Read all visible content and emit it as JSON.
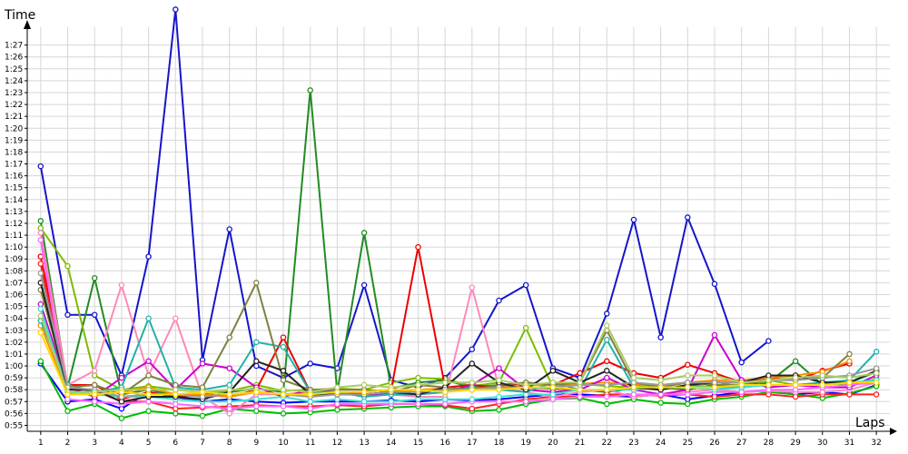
{
  "chart_data": {
    "type": "line",
    "title": "",
    "xlabel": "Laps",
    "ylabel": "Time",
    "grid": true,
    "legend": "none",
    "x": [
      1,
      2,
      3,
      4,
      5,
      6,
      7,
      8,
      9,
      10,
      11,
      12,
      13,
      14,
      15,
      16,
      17,
      18,
      19,
      20,
      21,
      22,
      23,
      24,
      25,
      26,
      27,
      28,
      29,
      30,
      31,
      32
    ],
    "xlim": [
      0.5,
      32.5
    ],
    "ylim": [
      54.5,
      88.5
    ],
    "y_unit": "seconds",
    "y_ticks": [
      55,
      56,
      57,
      58,
      59,
      60,
      61,
      62,
      63,
      64,
      65,
      66,
      67,
      68,
      69,
      70,
      71,
      72,
      73,
      74,
      75,
      76,
      77,
      78,
      79,
      80,
      81,
      82,
      83,
      84,
      85,
      86,
      87
    ],
    "y_tick_labels": [
      "0:55",
      "0:56",
      "0:57",
      "0:58",
      "0:59",
      "1:00",
      "1:01",
      "1:02",
      "1:03",
      "1:04",
      "1:05",
      "1:06",
      "1:07",
      "1:08",
      "1:09",
      "1:10",
      "1:11",
      "1:12",
      "1:13",
      "1:14",
      "1:15",
      "1:16",
      "1:17",
      "1:18",
      "1:19",
      "1:20",
      "1:21",
      "1:22",
      "1:23",
      "1:24",
      "1:25",
      "1:26",
      "1:27"
    ],
    "series": [
      {
        "color": "#1515cc",
        "values": [
          76.8,
          64.3,
          64.3,
          59.2,
          69.2,
          90.0,
          60.5,
          71.5,
          60.0,
          59.0,
          60.2,
          59.8,
          66.8,
          58.8,
          58.2,
          59.0,
          61.4,
          65.5,
          66.8,
          59.8,
          59.0,
          64.4,
          72.3,
          62.4,
          72.5,
          66.9,
          60.3,
          62.1,
          null,
          null,
          null,
          null
        ]
      },
      {
        "color": "#0000ff",
        "values": [
          60.2,
          57.0,
          57.2,
          56.4,
          57.8,
          57.4,
          57.0,
          57.2,
          57.0,
          56.9,
          57.0,
          57.0,
          57.0,
          57.1,
          57.0,
          57.2,
          57.1,
          57.2,
          57.4,
          57.6,
          57.6,
          57.5,
          57.4,
          57.6,
          57.2,
          57.5,
          57.8,
          57.9,
          57.6,
          57.8,
          57.6,
          58.4
        ]
      },
      {
        "color": "#00bb00",
        "values": [
          60.4,
          56.2,
          56.8,
          55.6,
          56.2,
          56.0,
          55.8,
          56.4,
          56.2,
          56.0,
          56.1,
          56.3,
          56.4,
          56.5,
          56.6,
          56.6,
          56.2,
          56.3,
          56.8,
          57.2,
          57.3,
          56.8,
          57.2,
          56.9,
          56.8,
          57.2,
          57.4,
          57.8,
          57.6,
          57.3,
          57.7,
          58.3
        ]
      },
      {
        "color": "#228b22",
        "values": [
          72.2,
          58.2,
          67.4,
          57.6,
          58.0,
          57.5,
          57.6,
          57.8,
          58.1,
          57.8,
          83.2,
          57.8,
          71.2,
          58.1,
          58.6,
          58.8,
          58.2,
          58.4,
          58.2,
          58.1,
          58.0,
          57.8,
          58.1,
          58.2,
          58.0,
          58.4,
          58.2,
          58.6,
          60.4,
          58.4,
          58.6,
          59.5
        ]
      },
      {
        "color": "#7bbd00",
        "values": [
          71.6,
          68.4,
          59.2,
          58.0,
          58.3,
          58.0,
          57.8,
          57.9,
          58.4,
          57.9,
          58.0,
          58.1,
          58.0,
          58.6,
          59.0,
          58.9,
          58.3,
          58.6,
          63.2,
          58.2,
          58.5,
          58.3,
          58.2,
          58.4,
          58.6,
          58.7,
          58.2,
          58.8,
          58.4,
          58.6,
          58.4,
          58.9
        ]
      },
      {
        "color": "#ee0000",
        "values": [
          69.2,
          58.4,
          58.4,
          57.2,
          57.8,
          57.4,
          57.6,
          57.4,
          58.0,
          62.4,
          57.8,
          57.6,
          57.8,
          58.0,
          70.0,
          58.2,
          58.4,
          58.2,
          58.6,
          58.4,
          59.4,
          60.4,
          59.4,
          59.0,
          60.1,
          59.4,
          58.6,
          59.0,
          58.8,
          59.6,
          60.2,
          null
        ]
      },
      {
        "color": "#ff2222",
        "values": [
          68.6,
          57.6,
          57.9,
          57.0,
          57.0,
          56.4,
          56.5,
          56.6,
          56.7,
          56.6,
          56.6,
          56.7,
          56.6,
          56.8,
          56.8,
          56.7,
          56.4,
          56.8,
          57.2,
          57.4,
          57.4,
          57.6,
          57.6,
          57.5,
          57.6,
          57.4,
          57.6,
          57.6,
          57.4,
          57.6,
          57.6,
          57.6
        ]
      },
      {
        "color": "#ff8c00",
        "values": [
          63.4,
          57.8,
          57.6,
          57.8,
          58.2,
          57.6,
          57.6,
          57.4,
          57.8,
          57.6,
          57.8,
          57.6,
          57.6,
          57.8,
          58.0,
          58.1,
          58.0,
          58.2,
          58.4,
          58.4,
          58.5,
          58.6,
          58.4,
          58.4,
          58.6,
          58.8,
          58.8,
          59.0,
          59.2,
          59.5,
          60.4,
          null
        ]
      },
      {
        "color": "#ff88bb",
        "values": [
          71.2,
          58.4,
          59.6,
          66.8,
          59.2,
          64.0,
          57.4,
          56.0,
          57.6,
          57.6,
          57.6,
          57.8,
          57.6,
          57.6,
          57.4,
          57.4,
          66.6,
          58.2,
          57.8,
          57.4,
          57.8,
          58.0,
          57.4,
          57.6,
          57.8,
          58.0,
          57.8,
          57.9,
          57.8,
          57.8,
          58.0,
          58.6
        ]
      },
      {
        "color": "#cc00cc",
        "values": [
          65.2,
          58.2,
          57.4,
          59.0,
          60.4,
          58.0,
          60.2,
          59.8,
          58.2,
          57.4,
          58.0,
          57.8,
          57.6,
          57.6,
          57.6,
          57.8,
          58.4,
          59.8,
          58.0,
          57.8,
          58.0,
          59.0,
          58.0,
          57.6,
          58.0,
          62.6,
          58.8,
          58.2,
          58.4,
          58.2,
          58.2,
          59.2
        ]
      },
      {
        "color": "#ff66ff",
        "values": [
          70.6,
          57.2,
          57.0,
          56.8,
          57.0,
          56.8,
          56.6,
          56.4,
          56.6,
          56.6,
          56.4,
          56.8,
          56.8,
          56.8,
          56.8,
          56.8,
          57.0,
          57.0,
          57.0,
          57.2,
          57.4,
          57.4,
          57.6,
          57.6,
          57.6,
          57.8,
          57.8,
          58.0,
          58.0,
          58.2,
          58.4,
          58.6
        ]
      },
      {
        "color": "#20b2aa",
        "values": [
          63.8,
          58.4,
          57.8,
          58.2,
          64.0,
          58.2,
          58.0,
          58.4,
          62.0,
          61.6,
          57.8,
          57.8,
          57.4,
          57.6,
          57.6,
          57.8,
          58.2,
          58.0,
          57.8,
          58.6,
          58.0,
          62.2,
          58.2,
          58.0,
          58.4,
          58.2,
          58.2,
          58.4,
          58.4,
          58.6,
          58.8,
          61.2
        ]
      },
      {
        "color": "#40e0d0",
        "values": [
          64.8,
          57.8,
          57.6,
          57.4,
          57.4,
          57.2,
          57.0,
          57.0,
          57.2,
          57.4,
          57.0,
          57.2,
          57.0,
          57.0,
          57.2,
          57.2,
          57.2,
          57.4,
          57.6,
          57.6,
          58.0,
          58.0,
          58.0,
          58.2,
          58.2,
          58.0,
          58.2,
          58.4,
          58.4,
          58.4,
          58.6,
          58.8
        ]
      },
      {
        "color": "#808040",
        "values": [
          66.4,
          58.2,
          58.4,
          57.6,
          59.2,
          58.4,
          58.2,
          62.4,
          67.0,
          58.8,
          58.0,
          58.0,
          58.0,
          57.8,
          58.4,
          58.2,
          58.0,
          58.4,
          58.6,
          58.4,
          58.6,
          63.0,
          58.6,
          58.2,
          58.6,
          58.4,
          58.4,
          58.8,
          59.0,
          59.0,
          61.0,
          null
        ]
      },
      {
        "color": "#222222",
        "values": [
          67.0,
          58.0,
          58.0,
          57.0,
          57.4,
          57.4,
          57.2,
          57.8,
          60.4,
          59.6,
          57.6,
          57.6,
          57.6,
          57.8,
          57.6,
          58.2,
          60.2,
          58.6,
          58.0,
          59.6,
          58.6,
          59.6,
          58.2,
          58.0,
          58.4,
          58.6,
          58.6,
          59.2,
          59.2,
          58.6,
          58.6,
          59.6
        ]
      },
      {
        "color": "#999999",
        "values": [
          67.8,
          58.2,
          58.0,
          57.4,
          57.6,
          57.6,
          57.4,
          57.6,
          57.8,
          57.6,
          57.4,
          57.6,
          57.6,
          57.8,
          57.8,
          58.0,
          58.0,
          58.2,
          58.2,
          58.2,
          58.4,
          58.4,
          58.6,
          58.4,
          58.6,
          58.6,
          58.6,
          58.8,
          58.8,
          59.0,
          59.2,
          59.8
        ]
      },
      {
        "color": "#aacc66",
        "values": [
          64.2,
          57.8,
          57.8,
          58.0,
          58.0,
          58.0,
          57.8,
          58.0,
          58.0,
          58.0,
          57.8,
          58.2,
          58.4,
          58.2,
          58.4,
          58.6,
          58.6,
          58.8,
          58.4,
          58.6,
          58.6,
          63.4,
          59.0,
          58.8,
          59.2,
          59.2,
          58.6,
          58.8,
          59.0,
          59.2,
          59.0,
          59.4
        ]
      },
      {
        "color": "#ffd700",
        "values": [
          62.8,
          57.6,
          57.6,
          57.8,
          57.6,
          57.6,
          57.8,
          57.6,
          57.8,
          57.6,
          57.6,
          57.8,
          57.8,
          58.0,
          58.0,
          57.8,
          58.0,
          58.0,
          58.2,
          58.2,
          58.0,
          58.0,
          58.2,
          58.2,
          58.2,
          58.2,
          58.4,
          58.4,
          58.4,
          58.4,
          58.6,
          58.6
        ]
      }
    ]
  }
}
